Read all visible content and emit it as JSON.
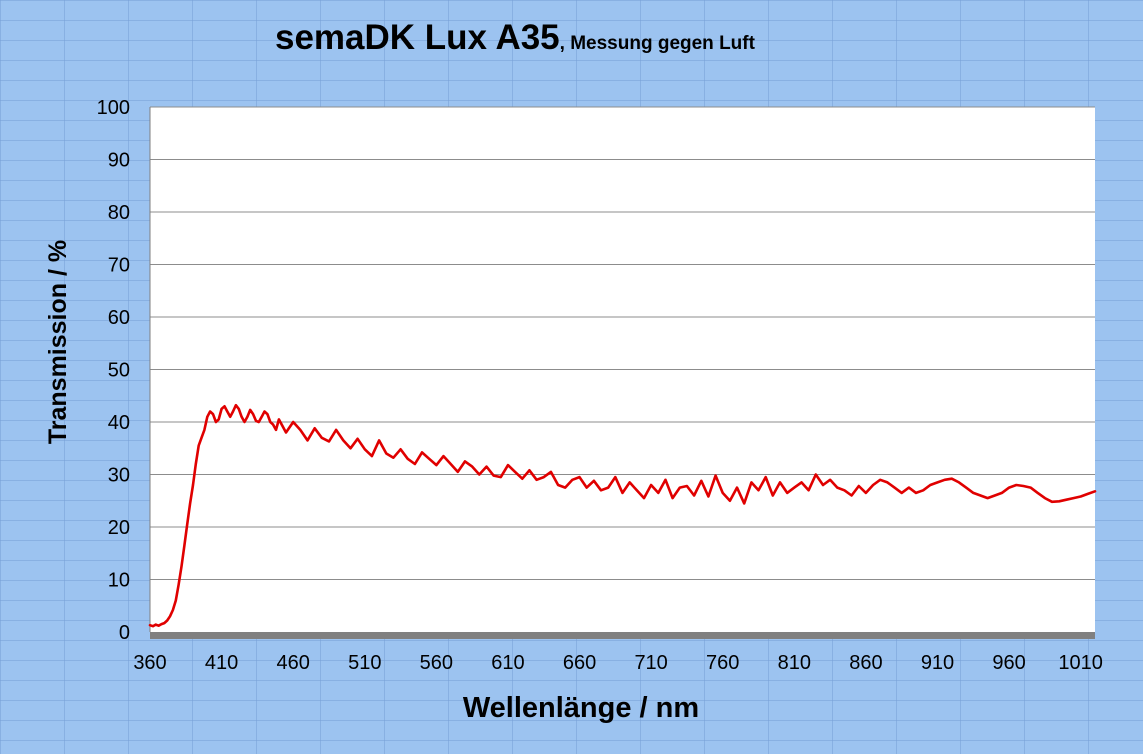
{
  "chart_data": {
    "type": "line",
    "title": "semaDK Lux A35",
    "subtitle": ", Messung gegen Luft",
    "xlabel": "Wellenlänge / nm",
    "ylabel": "Transmission / %",
    "xlim": [
      360,
      1020
    ],
    "ylim": [
      0,
      100
    ],
    "x_ticks": [
      360,
      410,
      460,
      510,
      560,
      610,
      660,
      710,
      760,
      810,
      860,
      910,
      960,
      1010
    ],
    "y_ticks": [
      0,
      10,
      20,
      30,
      40,
      50,
      60,
      70,
      80,
      90,
      100
    ],
    "grid": "horizontal",
    "legend": "none",
    "series": [
      {
        "color": "#e00000",
        "x": [
          360,
          362,
          364,
          366,
          368,
          370,
          372,
          374,
          376,
          378,
          380,
          382,
          384,
          386,
          388,
          390,
          392,
          394,
          396,
          398,
          400,
          402,
          404,
          406,
          408,
          410,
          412,
          414,
          416,
          418,
          420,
          422,
          424,
          426,
          428,
          430,
          432,
          434,
          436,
          438,
          440,
          442,
          444,
          446,
          448,
          450,
          455,
          460,
          465,
          470,
          475,
          480,
          485,
          490,
          495,
          500,
          505,
          510,
          515,
          520,
          525,
          530,
          535,
          540,
          545,
          550,
          555,
          560,
          565,
          570,
          575,
          580,
          585,
          590,
          595,
          600,
          605,
          610,
          615,
          620,
          625,
          630,
          635,
          640,
          645,
          650,
          655,
          660,
          665,
          670,
          675,
          680,
          685,
          690,
          695,
          700,
          705,
          710,
          715,
          720,
          725,
          730,
          735,
          740,
          745,
          750,
          755,
          760,
          765,
          770,
          775,
          780,
          785,
          790,
          795,
          800,
          805,
          810,
          815,
          820,
          825,
          830,
          835,
          840,
          845,
          850,
          855,
          860,
          865,
          870,
          875,
          880,
          885,
          890,
          895,
          900,
          905,
          910,
          915,
          920,
          925,
          930,
          935,
          940,
          945,
          950,
          955,
          960,
          965,
          970,
          975,
          980,
          985,
          990,
          995,
          1000,
          1005,
          1010,
          1015,
          1020
        ],
        "y": [
          1.3,
          1.1,
          1.4,
          1.2,
          1.5,
          1.7,
          2.2,
          3.0,
          4.2,
          6.0,
          9.0,
          12.5,
          16.5,
          20.5,
          24.5,
          28.0,
          32.0,
          35.5,
          37.0,
          38.5,
          41.0,
          42.0,
          41.5,
          40.0,
          40.5,
          42.5,
          43.0,
          42.0,
          41.0,
          42.0,
          43.2,
          42.5,
          41.0,
          40.0,
          41.0,
          42.3,
          41.5,
          40.2,
          40.0,
          41.0,
          42.0,
          41.5,
          40.0,
          39.5,
          38.5,
          40.5,
          38.0,
          40.0,
          38.5,
          36.5,
          38.8,
          37.0,
          36.3,
          38.5,
          36.5,
          35.0,
          36.8,
          34.8,
          33.5,
          36.5,
          34.0,
          33.2,
          34.8,
          33.0,
          32.0,
          34.2,
          33.0,
          31.8,
          33.5,
          32.0,
          30.5,
          32.5,
          31.5,
          30.0,
          31.5,
          29.8,
          29.5,
          31.8,
          30.5,
          29.2,
          30.8,
          29.0,
          29.5,
          30.5,
          28.0,
          27.5,
          29.0,
          29.5,
          27.5,
          28.8,
          27.0,
          27.5,
          29.5,
          26.5,
          28.5,
          27.0,
          25.5,
          28.0,
          26.5,
          29.0,
          25.5,
          27.5,
          27.8,
          26.0,
          28.8,
          25.8,
          29.8,
          26.5,
          25.0,
          27.5,
          24.5,
          28.5,
          27.0,
          29.5,
          26.0,
          28.5,
          26.5,
          27.5,
          28.5,
          27.0,
          30.0,
          28.0,
          29.0,
          27.5,
          27.0,
          26.0,
          27.8,
          26.5,
          28.0,
          29.0,
          28.5,
          27.5,
          26.5,
          27.5,
          26.5,
          27.0,
          28.0,
          28.5,
          29.0,
          29.2,
          28.5,
          27.5,
          26.5,
          26.0,
          25.5,
          26.0,
          26.5,
          27.5,
          28.0,
          27.8,
          27.5,
          26.5,
          25.5,
          24.8,
          24.9,
          25.2,
          25.5,
          25.8,
          26.3,
          26.8
        ]
      }
    ]
  }
}
